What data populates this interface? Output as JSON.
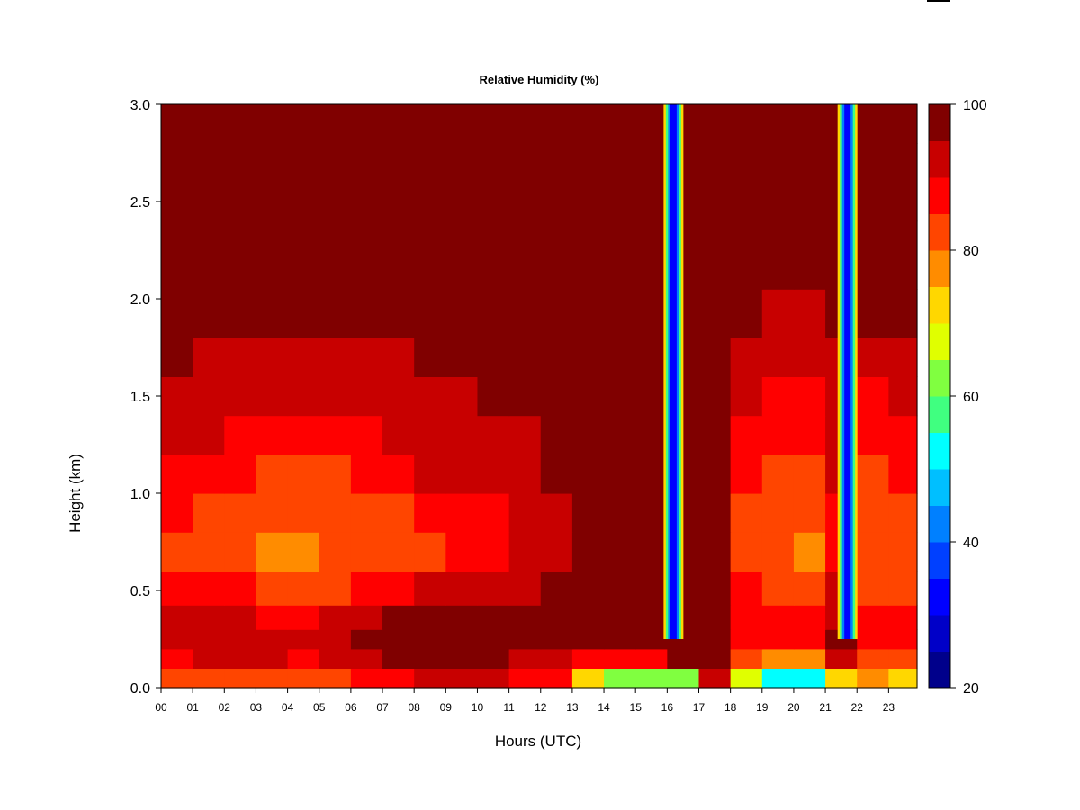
{
  "chart_data": {
    "type": "heatmap",
    "title": "Relative Humidity (%)",
    "xlabel": "Hours (UTC)",
    "ylabel": "Height (km)",
    "x_ticks": [
      "00",
      "01",
      "02",
      "03",
      "04",
      "05",
      "06",
      "07",
      "08",
      "09",
      "10",
      "11",
      "12",
      "13",
      "14",
      "15",
      "16",
      "17",
      "18",
      "19",
      "20",
      "21",
      "22",
      "23"
    ],
    "y_ticks": [
      "0.0",
      "0.5",
      "1.0",
      "1.5",
      "2.0",
      "2.5",
      "3.0"
    ],
    "xlim": [
      0,
      23.9
    ],
    "ylim": [
      0,
      3.0
    ],
    "colorbar": {
      "ticks": [
        "20",
        "40",
        "60",
        "80",
        "100"
      ],
      "range": [
        20,
        100
      ],
      "levels": 16,
      "colors": [
        "#00008b",
        "#0000c8",
        "#0000ff",
        "#0040ff",
        "#0080ff",
        "#00bfff",
        "#00ffff",
        "#40ff80",
        "#80ff40",
        "#e0ff00",
        "#ffd700",
        "#ff8c00",
        "#ff4500",
        "#ff0000",
        "#c80000",
        "#800000"
      ]
    },
    "hour_columns": [
      0,
      1,
      2,
      3,
      4,
      5,
      6,
      7,
      8,
      9,
      10,
      11,
      12,
      13,
      14,
      15,
      16,
      17,
      18,
      19,
      20,
      21,
      22,
      23
    ],
    "height_rows": [
      0.05,
      0.15,
      0.25,
      0.35,
      0.5,
      0.7,
      0.9,
      1.1,
      1.3,
      1.5,
      1.7,
      1.9,
      2.2,
      2.6,
      3.0
    ],
    "rh_values": [
      [
        80,
        82,
        84,
        84,
        84,
        84,
        86,
        88,
        90,
        90,
        90,
        88,
        88,
        72,
        60,
        62,
        60,
        92,
        66,
        52,
        52,
        70,
        76,
        72
      ],
      [
        88,
        90,
        90,
        90,
        88,
        90,
        94,
        100,
        100,
        100,
        98,
        94,
        92,
        88,
        86,
        88,
        100,
        100,
        84,
        78,
        78,
        90,
        84,
        84
      ],
      [
        90,
        92,
        90,
        90,
        90,
        92,
        96,
        100,
        100,
        100,
        100,
        98,
        100,
        100,
        100,
        100,
        100,
        100,
        88,
        86,
        86,
        96,
        88,
        88
      ],
      [
        90,
        90,
        90,
        88,
        88,
        90,
        94,
        98,
        100,
        100,
        98,
        100,
        100,
        100,
        100,
        100,
        100,
        100,
        88,
        86,
        86,
        94,
        86,
        86
      ],
      [
        88,
        88,
        86,
        84,
        84,
        84,
        86,
        88,
        90,
        90,
        90,
        92,
        96,
        98,
        100,
        100,
        100,
        100,
        86,
        84,
        82,
        90,
        84,
        84
      ],
      [
        84,
        82,
        80,
        78,
        78,
        80,
        80,
        82,
        84,
        86,
        88,
        90,
        94,
        96,
        100,
        100,
        100,
        100,
        82,
        80,
        78,
        88,
        80,
        80
      ],
      [
        86,
        84,
        82,
        80,
        80,
        80,
        82,
        84,
        86,
        88,
        88,
        90,
        94,
        98,
        100,
        100,
        100,
        100,
        84,
        82,
        80,
        88,
        82,
        82
      ],
      [
        88,
        88,
        86,
        84,
        84,
        84,
        86,
        88,
        90,
        90,
        92,
        92,
        96,
        98,
        100,
        100,
        100,
        100,
        86,
        84,
        84,
        90,
        84,
        86
      ],
      [
        90,
        90,
        88,
        88,
        86,
        88,
        88,
        90,
        92,
        92,
        94,
        94,
        96,
        100,
        100,
        96,
        100,
        100,
        88,
        86,
        86,
        92,
        86,
        88
      ],
      [
        92,
        92,
        90,
        90,
        90,
        90,
        90,
        92,
        94,
        94,
        96,
        96,
        98,
        100,
        100,
        100,
        100,
        100,
        90,
        88,
        88,
        92,
        88,
        90
      ],
      [
        96,
        94,
        92,
        92,
        92,
        92,
        92,
        94,
        96,
        96,
        98,
        98,
        100,
        100,
        100,
        100,
        100,
        100,
        92,
        90,
        90,
        94,
        92,
        94
      ],
      [
        98,
        98,
        96,
        96,
        96,
        96,
        96,
        96,
        98,
        98,
        100,
        100,
        100,
        100,
        100,
        100,
        100,
        100,
        96,
        94,
        94,
        98,
        96,
        96
      ],
      [
        100,
        100,
        100,
        100,
        100,
        100,
        100,
        100,
        100,
        100,
        100,
        100,
        100,
        100,
        100,
        100,
        100,
        100,
        100,
        100,
        100,
        100,
        100,
        100
      ],
      [
        100,
        100,
        100,
        100,
        100,
        100,
        100,
        100,
        100,
        100,
        100,
        100,
        100,
        100,
        100,
        100,
        100,
        100,
        100,
        100,
        100,
        100,
        100,
        100
      ],
      [
        100,
        100,
        100,
        100,
        100,
        100,
        100,
        100,
        100,
        100,
        100,
        100,
        100,
        100,
        100,
        100,
        100,
        100,
        100,
        100,
        100,
        100,
        100,
        100
      ]
    ],
    "dry_bands": [
      {
        "center_hour": 16.2,
        "min_rh": 26
      },
      {
        "center_hour": 21.7,
        "min_rh": 24
      }
    ],
    "grid": false,
    "legend": "right"
  }
}
